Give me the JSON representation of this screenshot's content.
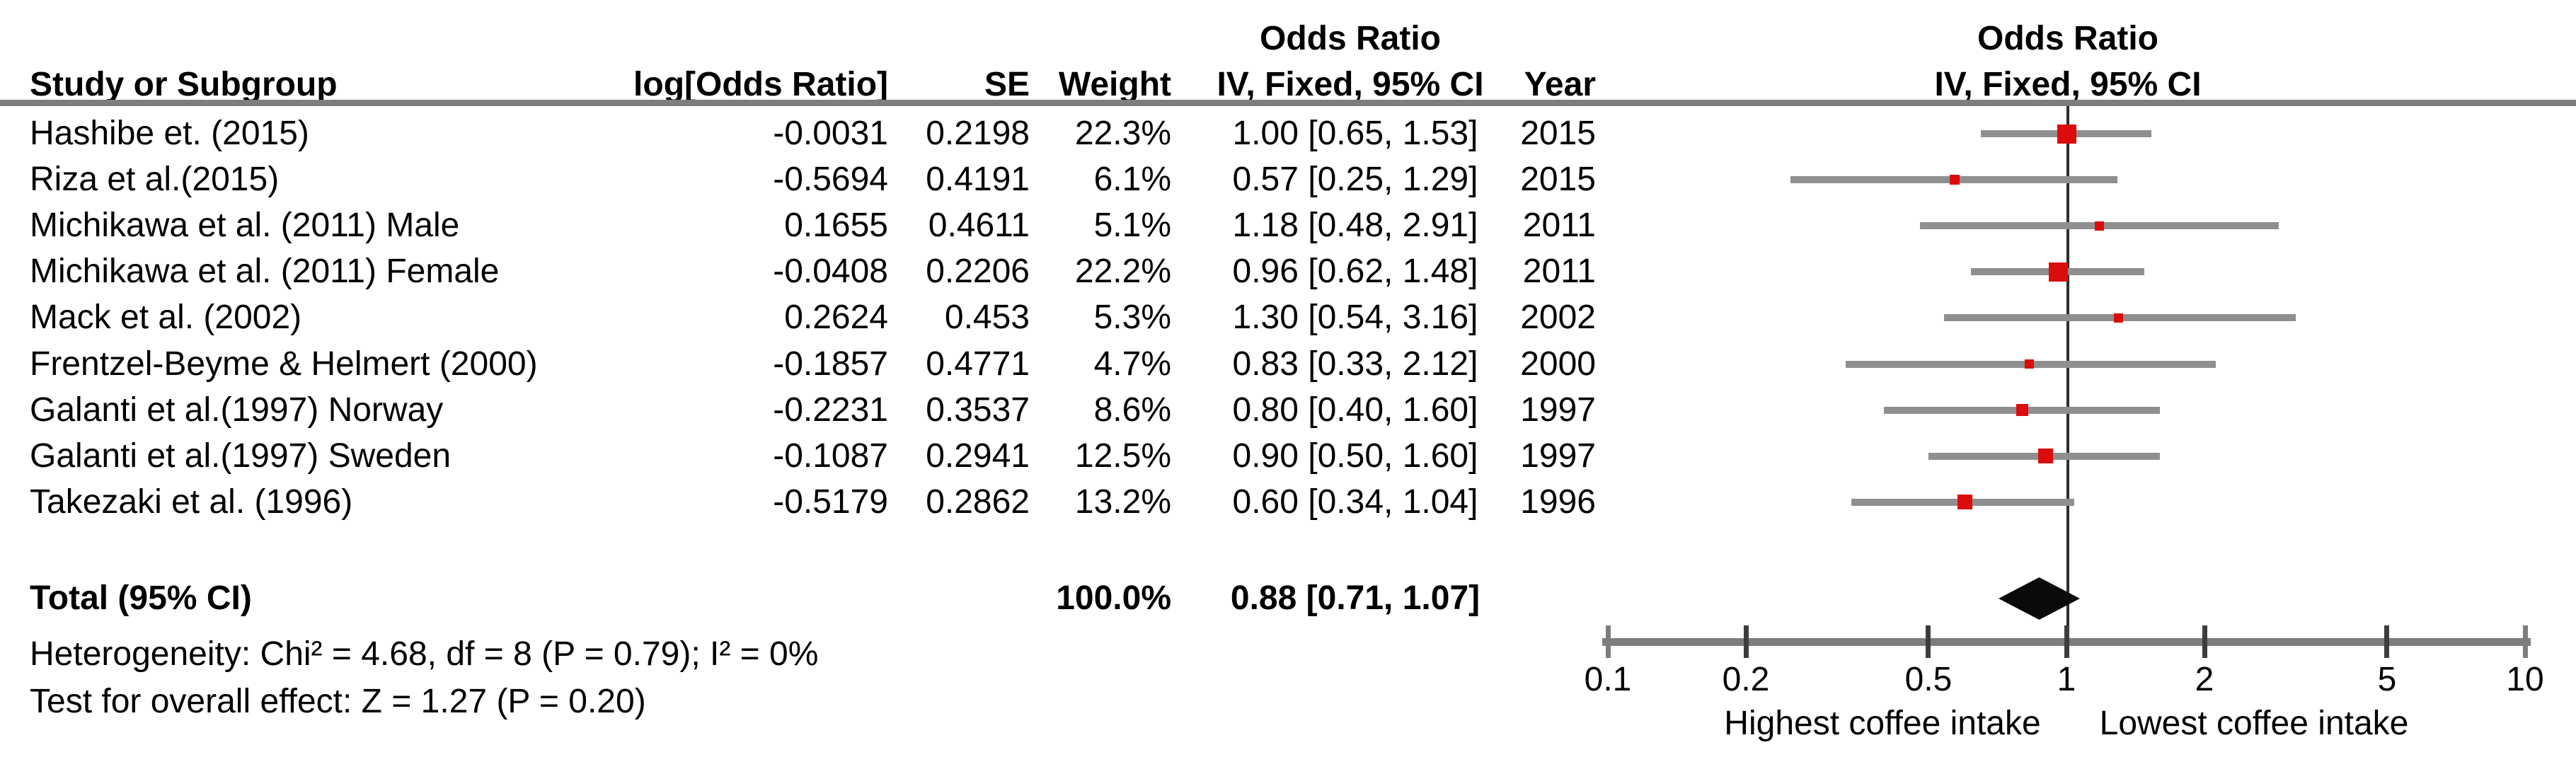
{
  "header": {
    "col_study": "Study or Subgroup",
    "col_logor": "log[Odds Ratio]",
    "col_se": "SE",
    "col_weight": "Weight",
    "col_effect_line1": "Odds Ratio",
    "col_effect_line2": "IV, Fixed, 95% CI",
    "col_year": "Year",
    "plot_line1": "Odds Ratio",
    "plot_line2": "IV, Fixed, 95% CI"
  },
  "chart_data": {
    "type": "forest",
    "effect_measure": "Odds Ratio",
    "method": "IV, Fixed, 95% CI",
    "studies": [
      {
        "label": "Hashibe et. (2015)",
        "log_or": "-0.0031",
        "se": "0.2198",
        "weight": "22.3%",
        "weight_value": 22.3,
        "ci_text": "1.00 [0.65, 1.53]",
        "or": 1.0,
        "ci_low": 0.65,
        "ci_high": 1.53,
        "year": "2015"
      },
      {
        "label": "Riza et al.(2015)",
        "log_or": "-0.5694",
        "se": "0.4191",
        "weight": "6.1%",
        "weight_value": 6.1,
        "ci_text": "0.57 [0.25, 1.29]",
        "or": 0.57,
        "ci_low": 0.25,
        "ci_high": 1.29,
        "year": "2015"
      },
      {
        "label": "Michikawa et al. (2011) Male",
        "log_or": "0.1655",
        "se": "0.4611",
        "weight": "5.1%",
        "weight_value": 5.1,
        "ci_text": "1.18 [0.48, 2.91]",
        "or": 1.18,
        "ci_low": 0.48,
        "ci_high": 2.91,
        "year": "2011"
      },
      {
        "label": "Michikawa et al. (2011) Female",
        "log_or": "-0.0408",
        "se": "0.2206",
        "weight": "22.2%",
        "weight_value": 22.2,
        "ci_text": "0.96 [0.62, 1.48]",
        "or": 0.96,
        "ci_low": 0.62,
        "ci_high": 1.48,
        "year": "2011"
      },
      {
        "label": "Mack et al. (2002)",
        "log_or": "0.2624",
        "se": "0.453",
        "weight": "5.3%",
        "weight_value": 5.3,
        "ci_text": "1.30 [0.54, 3.16]",
        "or": 1.3,
        "ci_low": 0.54,
        "ci_high": 3.16,
        "year": "2002"
      },
      {
        "label": "Frentzel-Beyme & Helmert (2000)",
        "log_or": "-0.1857",
        "se": "0.4771",
        "weight": "4.7%",
        "weight_value": 4.7,
        "ci_text": "0.83 [0.33, 2.12]",
        "or": 0.83,
        "ci_low": 0.33,
        "ci_high": 2.12,
        "year": "2000"
      },
      {
        "label": "Galanti et al.(1997) Norway",
        "log_or": "-0.2231",
        "se": "0.3537",
        "weight": "8.6%",
        "weight_value": 8.6,
        "ci_text": "0.80 [0.40, 1.60]",
        "or": 0.8,
        "ci_low": 0.4,
        "ci_high": 1.6,
        "year": "1997"
      },
      {
        "label": "Galanti et al.(1997) Sweden",
        "log_or": "-0.1087",
        "se": "0.2941",
        "weight": "12.5%",
        "weight_value": 12.5,
        "ci_text": "0.90 [0.50, 1.60]",
        "or": 0.9,
        "ci_low": 0.5,
        "ci_high": 1.6,
        "year": "1997"
      },
      {
        "label": "Takezaki et al. (1996)",
        "log_or": "-0.5179",
        "se": "0.2862",
        "weight": "13.2%",
        "weight_value": 13.2,
        "ci_text": "0.60 [0.34, 1.04]",
        "or": 0.6,
        "ci_low": 0.34,
        "ci_high": 1.04,
        "year": "1996"
      }
    ],
    "total": {
      "label": "Total (95% CI)",
      "weight": "100.0%",
      "ci_text": "0.88 [0.71, 1.07]",
      "or": 0.88,
      "ci_low": 0.71,
      "ci_high": 1.07
    },
    "footnotes": {
      "heterogeneity": "Heterogeneity: Chi² = 4.68, df = 8 (P = 0.79); I² = 0%",
      "overall_effect": "Test for overall effect: Z = 1.27 (P = 0.20)"
    },
    "axis": {
      "scale": "log",
      "xmin": 0.1,
      "xmax": 10,
      "ticks": [
        0.1,
        0.2,
        0.5,
        1,
        2,
        5,
        10
      ],
      "tick_labels": [
        "0.1",
        "0.2",
        "0.5",
        "1",
        "2",
        "5",
        "10"
      ],
      "label_left": "Highest coffee intake",
      "label_right": "Lowest coffee intake"
    },
    "colors": {
      "square": "#dd0c0c",
      "ci_bar": "#8f8f8f",
      "diamond": "#0a0a0a",
      "axis_line": "#7d7d7d",
      "tick": "#3d3d3d",
      "null_line": "#2e2e2e",
      "header_rule": "#7d7d7d",
      "text": "#000000"
    }
  }
}
